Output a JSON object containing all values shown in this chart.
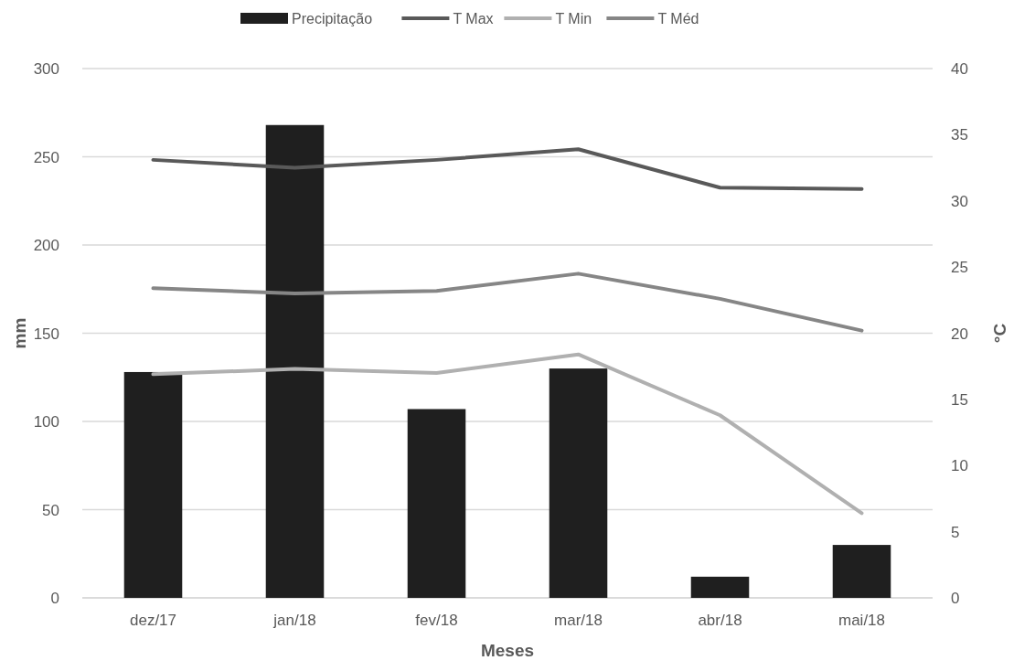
{
  "chart_data": {
    "type": "bar",
    "xlabel": "Meses",
    "ylabel": "mm",
    "y2label": "°C",
    "categories": [
      "dez/17",
      "jan/18",
      "fev/18",
      "mar/18",
      "abr/18",
      "mai/18"
    ],
    "series": [
      {
        "name": "Precipitação",
        "color": "#1f1f1f",
        "values": [
          128,
          268,
          107,
          130,
          12,
          30
        ]
      },
      {
        "name": "T Max",
        "type": "line",
        "axis": "y2",
        "color": "#595959",
        "values": [
          33.1,
          32.5,
          33.1,
          33.9,
          31.0,
          30.9
        ]
      },
      {
        "name": "T Min",
        "type": "line",
        "axis": "y2",
        "color": "#b0b0b0",
        "values": [
          16.9,
          17.3,
          17.0,
          18.4,
          13.8,
          6.4
        ]
      },
      {
        "name": "T Méd",
        "type": "line",
        "axis": "y2",
        "color": "#868686",
        "values": [
          23.4,
          23.0,
          23.2,
          24.5,
          22.6,
          20.2
        ]
      }
    ],
    "ylim": [
      0,
      300
    ],
    "yticks": [
      0,
      50,
      100,
      150,
      200,
      250,
      300
    ],
    "y2lim": [
      0,
      40
    ],
    "y2ticks": [
      0,
      5,
      10,
      15,
      20,
      25,
      30,
      35,
      40
    ],
    "grid": "y",
    "legend": "top",
    "marker": "none",
    "line_style": "solid"
  }
}
